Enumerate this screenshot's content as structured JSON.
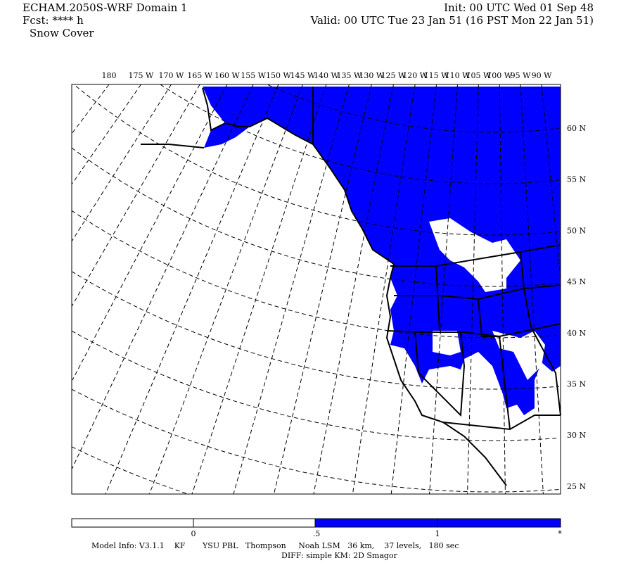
{
  "header": {
    "title": "ECHAM.2050S-WRF Domain 1",
    "fcst": "Fcst: **** h",
    "field": "Snow Cover",
    "init": "Init: 00 UTC Wed 01 Sep 48",
    "valid": "Valid: 00 UTC Tue 23 Jan 51 (16 PST Mon 22 Jan 51)"
  },
  "map": {
    "lon_labels": [
      "180",
      "175 W",
      "170 W",
      "165 W",
      "160 W",
      "155 W",
      "150 W",
      "145 W",
      "140 W",
      "135 W",
      "130 W",
      "125 W",
      "120 W",
      "115 W",
      "110 W",
      "105 W",
      "100 W",
      "95 W",
      "90 W"
    ],
    "lat_labels": [
      "60 N",
      "55 N",
      "50 N",
      "45 N",
      "40 N",
      "35 N",
      "30 N",
      "25 N"
    ],
    "snow_color": "#0000ff"
  },
  "colorbar": {
    "labels": [
      "0",
      ".5",
      "1",
      "*"
    ],
    "colors": [
      "#ffffff",
      "#ffffff",
      "#0000ff",
      "#0000ff"
    ]
  },
  "footer": {
    "line1": "Model Info: V3.1.1    KF       YSU PBL   Thompson     Noah LSM   36 km,    37 levels,   180 sec",
    "line2": "DIFF: simple KM: 2D Smagor"
  }
}
